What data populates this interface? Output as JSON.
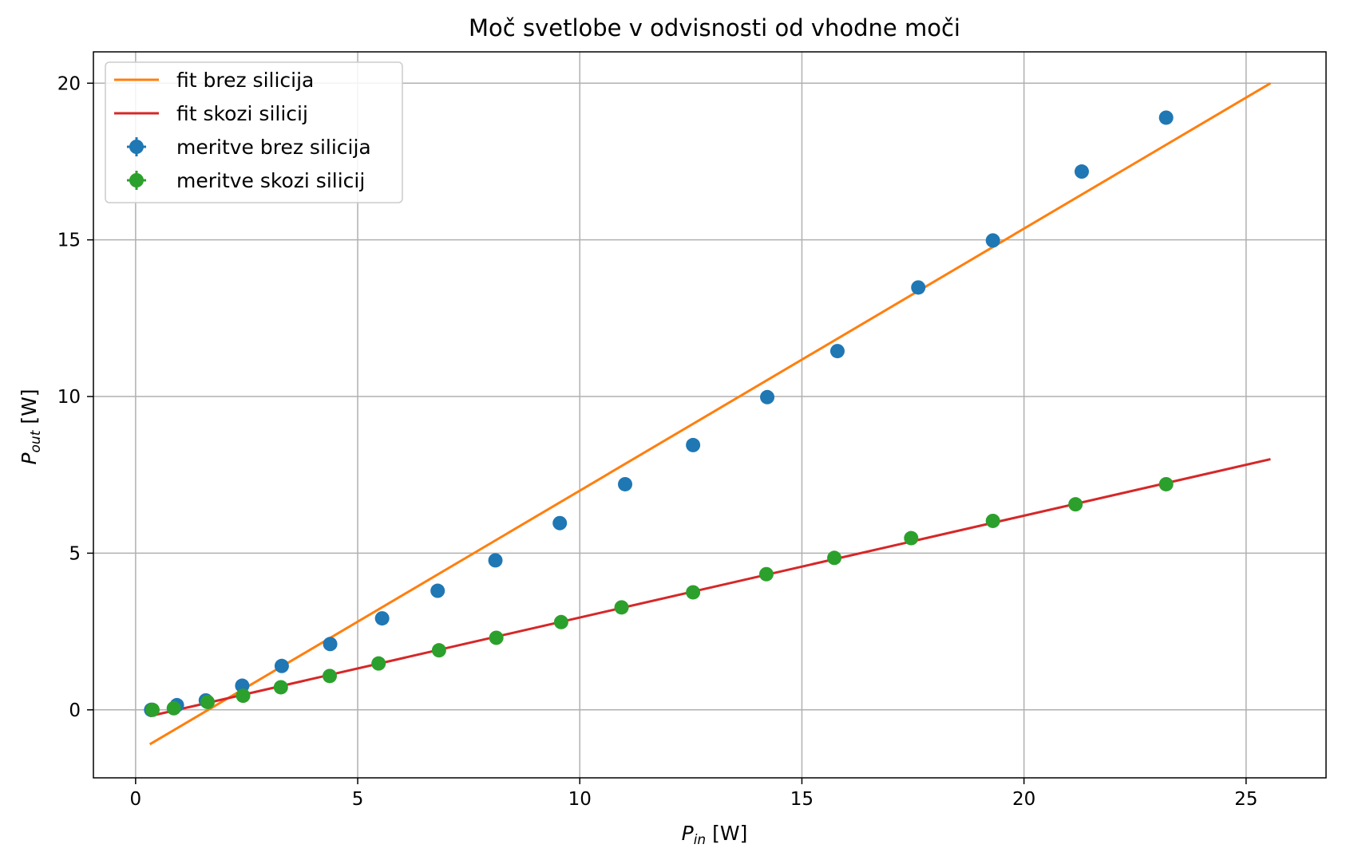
{
  "chart_data": {
    "type": "scatter",
    "title": "Moč svetlobe v odvisnosti od vhodne moči",
    "xlabel": {
      "main": "P",
      "sub": "in",
      "unit": " [W]"
    },
    "ylabel": {
      "main": "P",
      "sub": "out",
      "unit": " [W]"
    },
    "xlim": [
      -0.95,
      26.8
    ],
    "ylim": [
      -2.17,
      21.0
    ],
    "xticks": [
      0,
      5,
      10,
      15,
      20,
      25
    ],
    "yticks": [
      0,
      5,
      10,
      15,
      20
    ],
    "grid": true,
    "legend_position": "top-left",
    "series": [
      {
        "name": "meritve brez silicija",
        "kind": "points",
        "color": "#1f77b4",
        "x": [
          0.35,
          0.93,
          1.58,
          2.4,
          3.29,
          4.38,
          5.55,
          6.8,
          8.1,
          9.55,
          11.02,
          12.55,
          14.22,
          15.8,
          17.62,
          19.3,
          21.3,
          23.2
        ],
        "y": [
          0.0,
          0.15,
          0.3,
          0.77,
          1.4,
          2.1,
          2.92,
          3.8,
          4.77,
          5.96,
          7.2,
          8.45,
          9.98,
          11.45,
          13.48,
          14.98,
          17.18,
          18.9
        ]
      },
      {
        "name": "meritve skozi silicij",
        "kind": "points",
        "color": "#2ca02c",
        "x": [
          0.38,
          0.86,
          1.62,
          2.42,
          3.27,
          4.37,
          5.47,
          6.83,
          8.12,
          9.58,
          10.94,
          12.55,
          14.2,
          15.73,
          17.46,
          19.3,
          21.16,
          23.2
        ],
        "y": [
          0.0,
          0.05,
          0.25,
          0.45,
          0.72,
          1.08,
          1.48,
          1.9,
          2.3,
          2.8,
          3.27,
          3.75,
          4.33,
          4.85,
          5.48,
          6.03,
          6.56,
          7.2
        ]
      },
      {
        "name": "fit brez silicija",
        "kind": "line",
        "color": "#ff7f0e",
        "x": [
          0.32,
          25.55
        ],
        "y": [
          -1.1,
          20.0
        ]
      },
      {
        "name": "fit skozi silicij",
        "kind": "line",
        "color": "#d62728",
        "x": [
          0.32,
          25.55
        ],
        "y": [
          -0.2,
          8.0
        ]
      }
    ]
  }
}
